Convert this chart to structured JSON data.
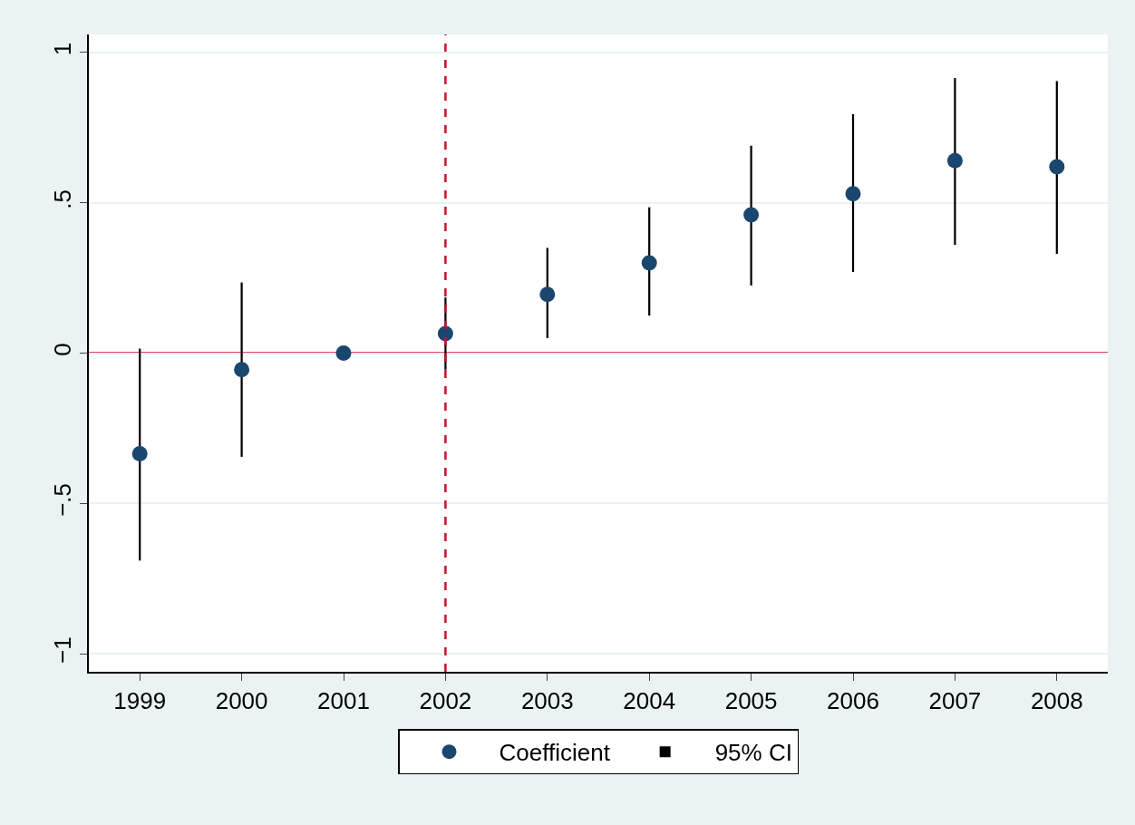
{
  "chart_data": {
    "type": "scatter",
    "categories": [
      "1999",
      "2000",
      "2001",
      "2002",
      "2003",
      "2004",
      "2005",
      "2006",
      "2007",
      "2008"
    ],
    "series": [
      {
        "name": "Coefficient",
        "color": "#1a476f",
        "values": [
          -0.335,
          -0.055,
          0,
          0.065,
          0.195,
          0.3,
          0.46,
          0.53,
          0.64,
          0.62
        ]
      },
      {
        "name": "95% CI",
        "type": "bar",
        "color": "#000000",
        "base": [
          -0.69,
          -0.345,
          null,
          -0.055,
          0.05,
          0.125,
          0.225,
          0.27,
          0.36,
          0.33
        ],
        "values": [
          0.705,
          0.58,
          null,
          0.24,
          0.3,
          0.36,
          0.465,
          0.525,
          0.555,
          0.575
        ]
      }
    ],
    "ylim": [
      -1.06,
      1.06
    ],
    "yticks": [
      {
        "value": -1,
        "label": "−1"
      },
      {
        "value": -0.5,
        "label": "−.5"
      },
      0,
      {
        "value": 0.5,
        "label": ".5"
      },
      1
    ],
    "ref_lines": [
      {
        "axis": "y",
        "value": 0,
        "color": "#c8102e",
        "line_style": "solid"
      },
      {
        "axis": "x",
        "value": "2002",
        "color": "#c8102e",
        "line_style": "dashed"
      }
    ],
    "grid": "y",
    "legend": "bottom",
    "marker": "circle"
  }
}
